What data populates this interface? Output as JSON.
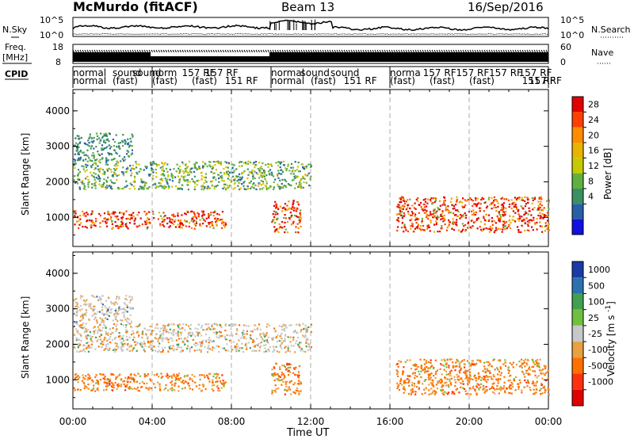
{
  "header": {
    "station": "McMurdo (fitACF)",
    "beam": "Beam 13",
    "date": "16/Sep/2016"
  },
  "strip_labels": {
    "nsky": "N.Sky",
    "nsky_top": "10^5",
    "nsky_bot": "10^0",
    "nsearch": "N.Search",
    "nsearch_top": "10^5",
    "nsearch_bot": "10^0",
    "freq_line1": "Freq.",
    "freq_line2": "[MHz]",
    "freq_top": "18",
    "freq_bot": "8",
    "nave": "Nave",
    "nave_top": "60",
    "nave_bot": "0",
    "cpid": "CPID"
  },
  "cpid_row1": [
    {
      "t": "normal",
      "x": "00:00"
    },
    {
      "t": "sound",
      "x": "02:00"
    },
    {
      "t": "sound",
      "x": "03:00"
    },
    {
      "t": "norm",
      "x": "04:00"
    },
    {
      "t": "157 RF",
      "x": "05:30"
    },
    {
      "t": "157 RF",
      "x": "06:40"
    },
    {
      "t": "normal",
      "x": "10:00"
    },
    {
      "t": "sound",
      "x": "11:30"
    },
    {
      "t": "sound",
      "x": "13:00"
    },
    {
      "t": "norma",
      "x": "16:00"
    },
    {
      "t": "157 RF",
      "x": "17:40"
    },
    {
      "t": "157 RF",
      "x": "19:20"
    },
    {
      "t": "157 RF",
      "x": "21:00"
    },
    {
      "t": "157 RF",
      "x": "22:30"
    }
  ],
  "cpid_row2": [
    {
      "t": "normal",
      "x": "00:00"
    },
    {
      "t": "(fast)",
      "x": "02:00"
    },
    {
      "t": "(fast)",
      "x": "04:00"
    },
    {
      "t": "(fast)",
      "x": "06:00"
    },
    {
      "t": "151 RF",
      "x": "07:40"
    },
    {
      "t": "normal",
      "x": "10:00"
    },
    {
      "t": "(fast)",
      "x": "12:00"
    },
    {
      "t": "151 RF",
      "x": "13:40"
    },
    {
      "t": "(fast)",
      "x": "16:00"
    },
    {
      "t": "(fast)",
      "x": "18:00"
    },
    {
      "t": "(fast)",
      "x": "20:00"
    },
    {
      "t": "151 RF",
      "x": "22:40"
    },
    {
      "t": "157 RF",
      "x": "23:00"
    }
  ],
  "chart_data": [
    {
      "type": "heatmap",
      "title": "",
      "xlabel": "Time UT",
      "ylabel": "Slant Range [km]",
      "xlim": [
        0,
        24
      ],
      "ylim": [
        180,
        4600
      ],
      "x_ticks": [
        "00:00",
        "04:00",
        "08:00",
        "12:00",
        "16:00",
        "20:00",
        "00:00"
      ],
      "y_ticks": [
        "1000",
        "2000",
        "3000",
        "4000"
      ],
      "colorbar": {
        "label": "Power [dB]",
        "ticks": [
          "28",
          "24",
          "20",
          "16",
          "12",
          "8",
          "4"
        ],
        "colors": [
          "#e00000",
          "#ff4000",
          "#ff8c00",
          "#e8b400",
          "#c8c800",
          "#60b040",
          "#3a9060",
          "#2860a8",
          "#1010e0"
        ]
      },
      "regions": [
        {
          "name": "main",
          "t0": 0.0,
          "t1": 7.7,
          "r0": 700,
          "r1": 1200,
          "level": "high"
        },
        {
          "name": "upper",
          "t0": 0.0,
          "t1": 12.0,
          "r0": 1800,
          "r1": 2600,
          "level": "mid"
        },
        {
          "name": "spike",
          "t0": 10.0,
          "t1": 11.5,
          "r0": 600,
          "r1": 1500,
          "level": "high"
        },
        {
          "name": "evening",
          "t0": 16.3,
          "t1": 24.0,
          "r0": 600,
          "r1": 1600,
          "level": "high"
        },
        {
          "name": "top-far",
          "t0": 0.0,
          "t1": 3.0,
          "r0": 2600,
          "r1": 3400,
          "level": "low"
        }
      ]
    },
    {
      "type": "heatmap",
      "title": "",
      "xlabel": "Time UT",
      "ylabel": "Slant Range [km]",
      "xlim": [
        0,
        24
      ],
      "ylim": [
        180,
        4600
      ],
      "x_ticks": [
        "00:00",
        "04:00",
        "08:00",
        "12:00",
        "16:00",
        "20:00",
        "00:00"
      ],
      "y_ticks": [
        "1000",
        "2000",
        "3000",
        "4000"
      ],
      "colorbar": {
        "label": "Velocity [m s^-1]",
        "ticks": [
          "1000",
          "500",
          "100",
          "25",
          "-25",
          "-100",
          "-500",
          "-1000"
        ],
        "colors": [
          "#1a3aa8",
          "#2c70b0",
          "#40a050",
          "#70c040",
          "#c8c8c8",
          "#e8a040",
          "#ff7000",
          "#ff3010",
          "#e00000"
        ]
      }
    }
  ]
}
